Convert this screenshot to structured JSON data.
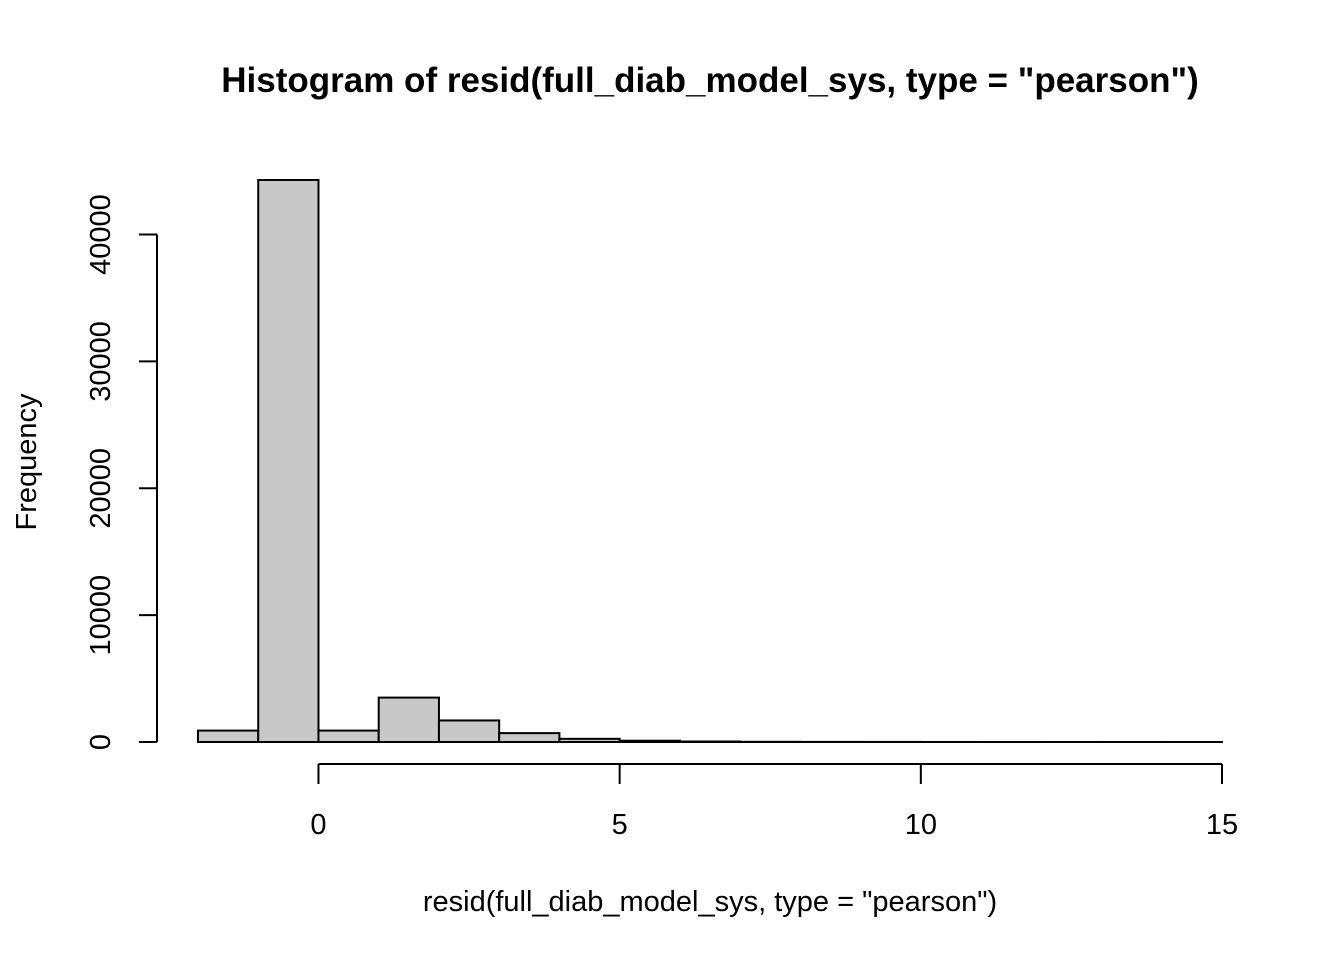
{
  "chart_data": {
    "type": "bar",
    "title": "Histogram of resid(full_diab_model_sys, type = \"pearson\")",
    "xlabel": "resid(full_diab_model_sys, type = \"pearson\")",
    "ylabel": "Frequency",
    "xlim": [
      -2,
      15
    ],
    "ylim": [
      0,
      44300
    ],
    "x_ticks": [
      0,
      5,
      10,
      15
    ],
    "x_tick_labels": [
      "0",
      "5",
      "10",
      "15"
    ],
    "y_ticks": [
      0,
      10000,
      20000,
      30000,
      40000
    ],
    "y_tick_labels": [
      "0",
      "10000",
      "20000",
      "30000",
      "40000"
    ],
    "bar_color": "#c8c8c8",
    "bins": [
      {
        "x0": -2,
        "x1": -1,
        "value": 900
      },
      {
        "x0": -1,
        "x1": 0,
        "value": 44300
      },
      {
        "x0": 0,
        "x1": 1,
        "value": 900
      },
      {
        "x0": 1,
        "x1": 2,
        "value": 3500
      },
      {
        "x0": 2,
        "x1": 3,
        "value": 1700
      },
      {
        "x0": 3,
        "x1": 4,
        "value": 700
      },
      {
        "x0": 4,
        "x1": 5,
        "value": 250
      },
      {
        "x0": 5,
        "x1": 6,
        "value": 100
      },
      {
        "x0": 6,
        "x1": 7,
        "value": 40
      },
      {
        "x0": 7,
        "x1": 8,
        "value": 15
      },
      {
        "x0": 8,
        "x1": 9,
        "value": 8
      },
      {
        "x0": 9,
        "x1": 10,
        "value": 5
      },
      {
        "x0": 10,
        "x1": 11,
        "value": 3
      },
      {
        "x0": 11,
        "x1": 12,
        "value": 2
      },
      {
        "x0": 12,
        "x1": 13,
        "value": 1
      },
      {
        "x0": 13,
        "x1": 14,
        "value": 1
      },
      {
        "x0": 14,
        "x1": 15,
        "value": 1
      }
    ]
  }
}
